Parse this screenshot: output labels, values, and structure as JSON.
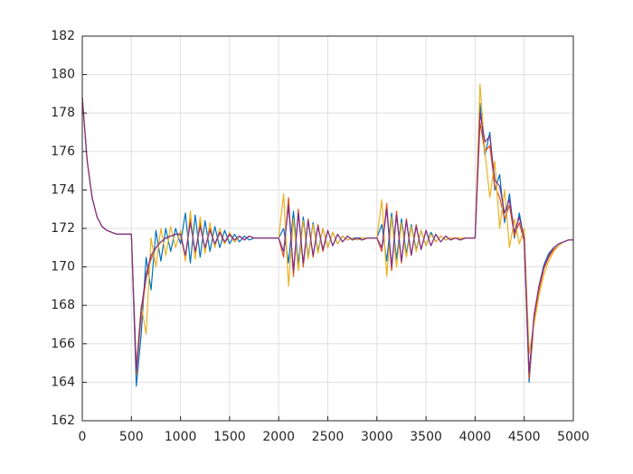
{
  "chart_data": {
    "type": "line",
    "x": [
      0,
      50,
      100,
      150,
      200,
      250,
      300,
      350,
      400,
      450,
      500,
      550,
      600,
      650,
      700,
      750,
      800,
      850,
      900,
      950,
      1000,
      1050,
      1100,
      1150,
      1200,
      1250,
      1300,
      1350,
      1400,
      1450,
      1500,
      1550,
      1600,
      1650,
      1700,
      1750,
      1800,
      1850,
      1900,
      1950,
      2000,
      2050,
      2100,
      2150,
      2200,
      2250,
      2300,
      2350,
      2400,
      2450,
      2500,
      2550,
      2600,
      2650,
      2700,
      2750,
      2800,
      2850,
      2900,
      2950,
      3000,
      3050,
      3100,
      3150,
      3200,
      3250,
      3300,
      3350,
      3400,
      3450,
      3500,
      3550,
      3600,
      3650,
      3700,
      3750,
      3800,
      3850,
      3900,
      3950,
      4000,
      4050,
      4100,
      4150,
      4200,
      4250,
      4300,
      4350,
      4400,
      4450,
      4500,
      4550,
      4600,
      4650,
      4700,
      4750,
      4800,
      4850,
      4900,
      4950,
      5000
    ],
    "series": [
      {
        "color": "#0072bd",
        "values": [
          178.8,
          175.5,
          173.6,
          172.6,
          172.1,
          171.9,
          171.8,
          171.7,
          171.7,
          171.7,
          171.7,
          163.8,
          166.5,
          170.5,
          168.8,
          171.9,
          170.3,
          172.0,
          170.8,
          172.0,
          171.2,
          172.8,
          170.2,
          172.7,
          170.5,
          172.4,
          170.8,
          172.1,
          171.0,
          171.9,
          171.2,
          171.7,
          171.3,
          171.6,
          171.4,
          171.5,
          171.5,
          171.5,
          171.5,
          171.5,
          171.5,
          172.0,
          170.2,
          172.9,
          170.1,
          172.6,
          170.5,
          172.3,
          170.8,
          172.0,
          171.0,
          171.8,
          171.2,
          171.6,
          171.4,
          171.5,
          171.5,
          171.5,
          171.5,
          171.5,
          171.5,
          172.2,
          170.3,
          172.8,
          170.4,
          172.5,
          170.7,
          172.2,
          170.9,
          171.9,
          171.1,
          171.8,
          171.3,
          171.6,
          171.4,
          171.5,
          171.5,
          171.5,
          171.5,
          171.5,
          171.5,
          178.5,
          175.8,
          177.0,
          174.0,
          174.8,
          172.3,
          173.8,
          171.5,
          172.8,
          171.4,
          164.0,
          167.3,
          169.0,
          170.1,
          170.7,
          171.0,
          171.2,
          171.3,
          171.4,
          171.4
        ]
      },
      {
        "color": "#d95319",
        "values": [
          178.8,
          175.5,
          173.6,
          172.6,
          172.1,
          171.9,
          171.8,
          171.7,
          171.7,
          171.7,
          171.7,
          164.4,
          167.5,
          169.4,
          170.4,
          171.0,
          171.3,
          171.5,
          171.6,
          171.7,
          171.7,
          170.4,
          172.5,
          170.6,
          172.3,
          170.9,
          172.0,
          171.1,
          171.8,
          171.2,
          171.7,
          171.3,
          171.6,
          171.4,
          171.6,
          171.5,
          171.5,
          171.5,
          171.5,
          171.5,
          171.5,
          170.5,
          173.6,
          169.5,
          173.0,
          170.0,
          172.5,
          170.5,
          172.2,
          170.8,
          171.9,
          171.1,
          171.7,
          171.3,
          171.6,
          171.4,
          171.5,
          171.4,
          171.5,
          171.5,
          171.5,
          170.8,
          173.3,
          169.8,
          172.9,
          170.2,
          172.5,
          170.6,
          172.2,
          170.9,
          171.9,
          171.1,
          171.7,
          171.3,
          171.6,
          171.4,
          171.5,
          171.4,
          171.5,
          171.5,
          171.5,
          177.5,
          176.0,
          176.3,
          174.2,
          173.6,
          172.5,
          173.2,
          171.6,
          172.3,
          171.3,
          164.2,
          167.2,
          168.8,
          169.9,
          170.5,
          170.9,
          171.1,
          171.3,
          171.4,
          171.4
        ]
      },
      {
        "color": "#edb120",
        "values": [
          178.8,
          175.5,
          173.6,
          172.6,
          172.1,
          171.9,
          171.8,
          171.7,
          171.7,
          171.7,
          171.7,
          164.8,
          168.0,
          166.5,
          171.5,
          170.0,
          172.0,
          170.6,
          172.1,
          171.0,
          171.9,
          170.3,
          172.9,
          170.4,
          172.6,
          170.7,
          172.3,
          171.0,
          172.0,
          171.2,
          171.8,
          171.3,
          171.6,
          171.4,
          171.6,
          171.5,
          171.5,
          171.5,
          171.5,
          171.5,
          171.5,
          173.8,
          169.0,
          172.5,
          169.8,
          172.4,
          170.4,
          172.2,
          170.7,
          172.0,
          171.0,
          171.8,
          171.2,
          171.6,
          171.4,
          171.5,
          171.4,
          171.5,
          171.5,
          171.5,
          171.5,
          173.5,
          169.5,
          172.6,
          170.0,
          172.3,
          170.5,
          172.1,
          170.8,
          171.9,
          171.1,
          171.7,
          171.3,
          171.6,
          171.4,
          171.5,
          171.5,
          171.5,
          171.5,
          171.5,
          171.5,
          179.5,
          176.0,
          173.6,
          175.5,
          172.0,
          174.0,
          171.0,
          172.5,
          171.2,
          172.0,
          165.5,
          167.0,
          168.5,
          169.6,
          170.3,
          170.8,
          171.1,
          171.3,
          171.4,
          171.4
        ]
      },
      {
        "color": "#7e2f8e",
        "values": [
          178.8,
          175.5,
          173.6,
          172.6,
          172.1,
          171.9,
          171.8,
          171.7,
          171.7,
          171.7,
          171.7,
          164.6,
          167.8,
          169.6,
          170.6,
          171.0,
          171.3,
          171.5,
          171.6,
          171.7,
          171.7,
          170.6,
          172.3,
          170.8,
          172.1,
          171.0,
          171.9,
          171.2,
          171.8,
          171.3,
          171.7,
          171.4,
          171.6,
          171.4,
          171.6,
          171.5,
          171.5,
          171.5,
          171.5,
          171.5,
          171.5,
          170.8,
          173.2,
          169.8,
          172.8,
          170.2,
          172.4,
          170.6,
          172.1,
          170.9,
          171.9,
          171.1,
          171.7,
          171.3,
          171.6,
          171.4,
          171.5,
          171.4,
          171.5,
          171.5,
          171.5,
          171.0,
          173.0,
          170.0,
          172.7,
          170.3,
          172.4,
          170.6,
          172.1,
          170.9,
          171.9,
          171.1,
          171.7,
          171.3,
          171.6,
          171.4,
          171.5,
          171.4,
          171.5,
          171.5,
          171.5,
          178.0,
          176.5,
          176.8,
          174.5,
          174.2,
          172.8,
          173.5,
          171.8,
          172.6,
          171.5,
          164.5,
          167.5,
          169.0,
          170.0,
          170.6,
          171.0,
          171.2,
          171.3,
          171.4,
          171.4
        ]
      }
    ],
    "xlim": [
      0,
      5000
    ],
    "ylim": [
      162,
      182
    ],
    "xticks": [
      0,
      500,
      1000,
      1500,
      2000,
      2500,
      3000,
      3500,
      4000,
      4500,
      5000
    ],
    "yticks": [
      162,
      164,
      166,
      168,
      170,
      172,
      174,
      176,
      178,
      180,
      182
    ],
    "grid": true
  }
}
